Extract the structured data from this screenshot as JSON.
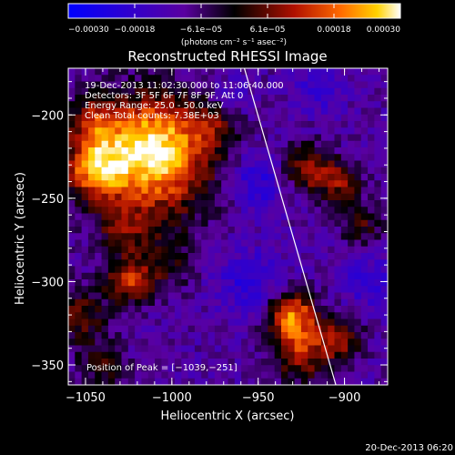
{
  "chart_data": {
    "type": "heatmap",
    "title": "Reconstructed RHESSI Image",
    "xlabel": "Heliocentric X (arcsec)",
    "ylabel": "Heliocentric Y (arcsec)",
    "xlim": [
      -1060,
      -875
    ],
    "ylim": [
      -362,
      -172
    ],
    "x_ticks": [
      {
        "value": -1050,
        "label": "−1050"
      },
      {
        "value": -1000,
        "label": "−1000"
      },
      {
        "value": -950,
        "label": "−950"
      },
      {
        "value": -900,
        "label": "−900"
      }
    ],
    "y_ticks": [
      {
        "value": -200,
        "label": "−200"
      },
      {
        "value": -250,
        "label": "−250"
      },
      {
        "value": -300,
        "label": "−300"
      },
      {
        "value": -350,
        "label": "−350"
      }
    ],
    "colorbar": {
      "colormap": "hot-blue",
      "range": [
        -0.0003,
        0.0003
      ],
      "tick_labels": [
        "−0.00030",
        "−0.00018",
        "−6.1e−05",
        "6.1e−05",
        "0.00018",
        "0.00030"
      ],
      "unit_label": "(photons cm⁻² s⁻¹ asec⁻²)"
    },
    "annotations": [
      "19-Dec-2013 11:02:30.000 to 11:06:40.000",
      "Detectors: 3F 5F 6F 7F 8F 9F, Att 0",
      "Energy Range: 25.0 - 50.0 keV",
      "Clean    Total counts: 7.38E+03"
    ],
    "peak_text": "Position of Peak = [−1039,−251]",
    "peak": {
      "x": -1039,
      "y": -251
    },
    "limb": {
      "top_x": -958,
      "bottom_x": -905
    },
    "sources": [
      {
        "x": -1012,
        "y": -228,
        "amplitude": 0.00028,
        "sigma": 26
      },
      {
        "x": -1045,
        "y": -232,
        "amplitude": 0.00024,
        "sigma": 12
      },
      {
        "x": -1010,
        "y": -215,
        "amplitude": 0.00015,
        "sigma": 18
      },
      {
        "x": -1025,
        "y": -300,
        "amplitude": 0.00022,
        "sigma": 9
      },
      {
        "x": -1055,
        "y": -320,
        "amplitude": 0.00015,
        "sigma": 12
      },
      {
        "x": -1045,
        "y": -205,
        "amplitude": 0.00016,
        "sigma": 10
      },
      {
        "x": -1028,
        "y": -270,
        "amplitude": 0.00012,
        "sigma": 10
      },
      {
        "x": -1005,
        "y": -290,
        "amplitude": 0.0001,
        "sigma": 12
      },
      {
        "x": -1040,
        "y": -350,
        "amplitude": 0.00012,
        "sigma": 10
      },
      {
        "x": -930,
        "y": -320,
        "amplitude": 0.00028,
        "sigma": 10
      },
      {
        "x": -925,
        "y": -342,
        "amplitude": 0.0002,
        "sigma": 12
      },
      {
        "x": -902,
        "y": -335,
        "amplitude": 0.00016,
        "sigma": 9
      },
      {
        "x": -922,
        "y": -232,
        "amplitude": 0.00019,
        "sigma": 10
      },
      {
        "x": -903,
        "y": -240,
        "amplitude": 0.00016,
        "sigma": 9
      },
      {
        "x": -890,
        "y": -265,
        "amplitude": 0.00012,
        "sigma": 9
      },
      {
        "x": -975,
        "y": -205,
        "amplitude": 0.0001,
        "sigma": 10
      },
      {
        "x": -955,
        "y": -300,
        "amplitude": -0.0001,
        "sigma": 14
      },
      {
        "x": -950,
        "y": -240,
        "amplitude": -0.00012,
        "sigma": 12
      },
      {
        "x": -965,
        "y": -190,
        "amplitude": -8e-05,
        "sigma": 8
      },
      {
        "x": -885,
        "y": -300,
        "amplitude": -0.0001,
        "sigma": 10
      },
      {
        "x": -915,
        "y": -185,
        "amplitude": -8e-05,
        "sigma": 10
      }
    ]
  },
  "footer": {
    "timestamp": "20-Dec-2013 06:20"
  }
}
